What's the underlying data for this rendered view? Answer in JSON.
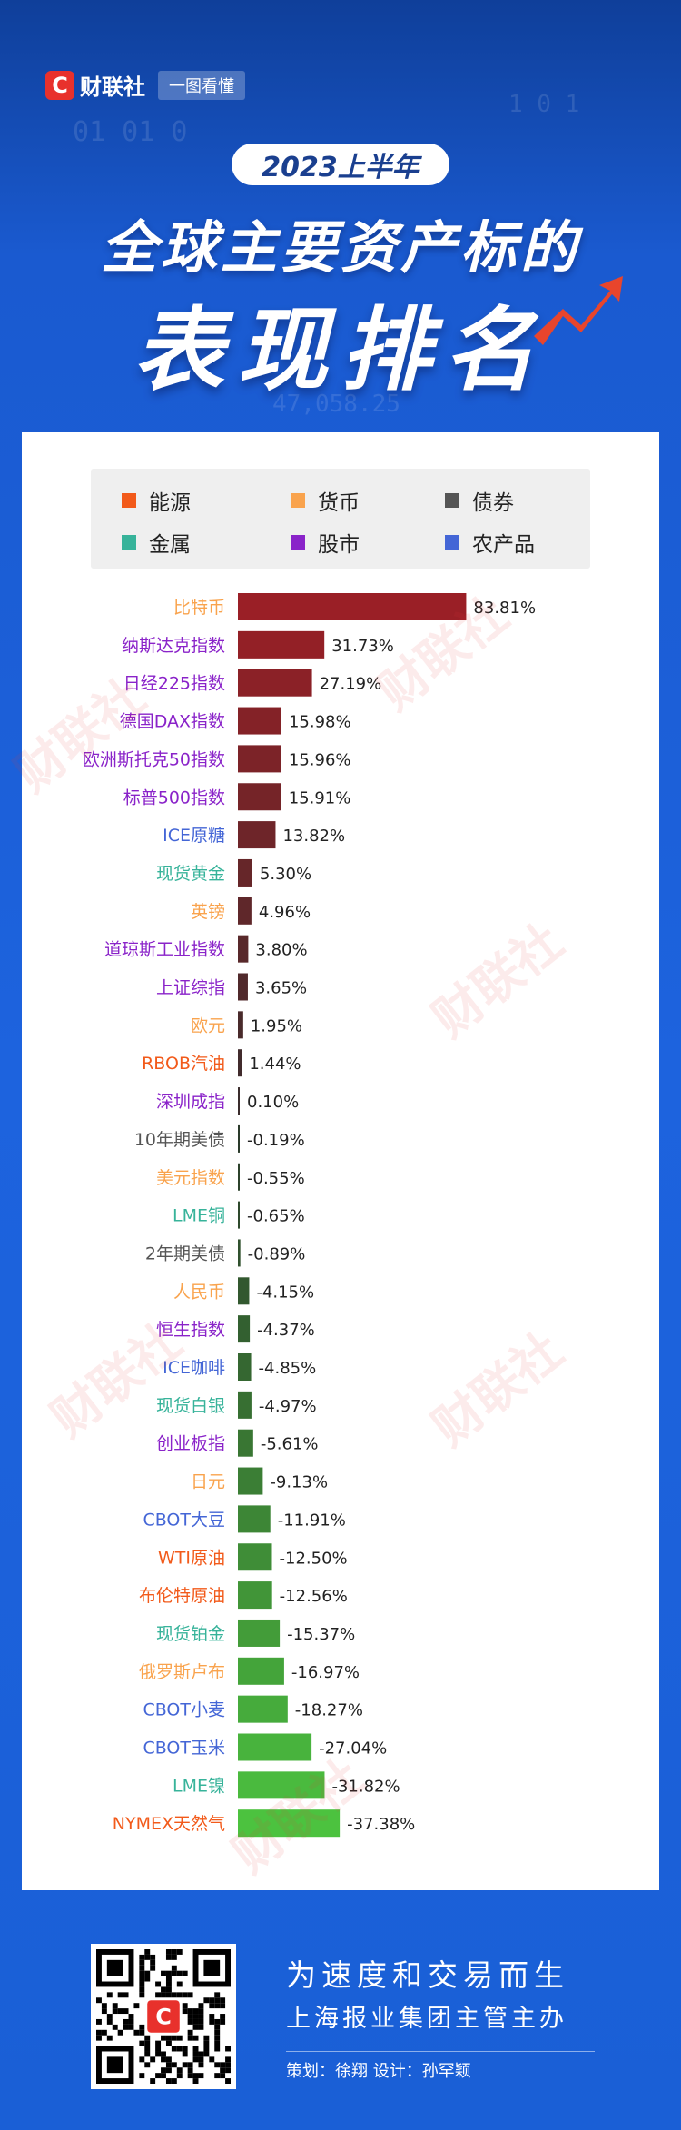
{
  "brand": {
    "logo_letter": "C",
    "name": "财联社",
    "tag": "一图看懂"
  },
  "header": {
    "period": "2023上半年",
    "title_line1": "全球主要资产标的",
    "title_line2": "表现排名"
  },
  "background_digits": [
    "01 01 0",
    "47,058.25",
    "1 0 1"
  ],
  "legend": [
    {
      "label": "能源",
      "color": "#f25a1a"
    },
    {
      "label": "货币",
      "color": "#f9a34d"
    },
    {
      "label": "债券",
      "color": "#555555"
    },
    {
      "label": "金属",
      "color": "#37b39a"
    },
    {
      "label": "股市",
      "color": "#8a23c9"
    },
    {
      "label": "农产品",
      "color": "#4466d6"
    }
  ],
  "watermark_text": "财联社",
  "chart_data": {
    "type": "bar",
    "orientation": "horizontal",
    "value_format": "percent",
    "categories": [
      "比特币",
      "纳斯达克指数",
      "日经225指数",
      "德国DAX指数",
      "欧洲斯托克50指数",
      "标普500指数",
      "ICE原糖",
      "现货黄金",
      "英镑",
      "道琼斯工业指数",
      "上证综指",
      "欧元",
      "RBOB汽油",
      "深圳成指",
      "10年期美债",
      "美元指数",
      "LME铜",
      "2年期美债",
      "人民币",
      "恒生指数",
      "ICE咖啡",
      "现货白银",
      "创业板指",
      "日元",
      "CBOT大豆",
      "WTI原油",
      "布伦特原油",
      "现货铂金",
      "俄罗斯卢布",
      "CBOT小麦",
      "CBOT玉米",
      "LME镍",
      "NYMEX天然气"
    ],
    "category_groups": [
      "货币",
      "股市",
      "股市",
      "股市",
      "股市",
      "股市",
      "农产品",
      "金属",
      "货币",
      "股市",
      "股市",
      "货币",
      "能源",
      "股市",
      "债券",
      "货币",
      "金属",
      "债券",
      "货币",
      "股市",
      "农产品",
      "金属",
      "股市",
      "货币",
      "农产品",
      "能源",
      "能源",
      "金属",
      "货币",
      "农产品",
      "农产品",
      "金属",
      "能源"
    ],
    "values": [
      83.81,
      31.73,
      27.19,
      15.98,
      15.96,
      15.91,
      13.82,
      5.3,
      4.96,
      3.8,
      3.65,
      1.95,
      1.44,
      0.1,
      -0.19,
      -0.55,
      -0.65,
      -0.89,
      -4.15,
      -4.37,
      -4.85,
      -4.97,
      -5.61,
      -9.13,
      -11.91,
      -12.5,
      -12.56,
      -15.37,
      -16.97,
      -18.27,
      -27.04,
      -31.82,
      -37.38
    ],
    "value_labels": [
      "83.81%",
      "31.73%",
      "27.19%",
      "15.98%",
      "15.96%",
      "15.91%",
      "13.82%",
      "5.30%",
      "4.96%",
      "3.80%",
      "3.65%",
      "1.95%",
      "1.44%",
      "0.10%",
      "-0.19%",
      "-0.55%",
      "-0.65%",
      "-0.89%",
      "-4.15%",
      "-4.37%",
      "-4.85%",
      "-4.97%",
      "-5.61%",
      "-9.13%",
      "-11.91%",
      "-12.50%",
      "-12.56%",
      "-15.37%",
      "-16.97%",
      "-18.27%",
      "-27.04%",
      "-31.82%",
      "-37.38%"
    ],
    "positive_color_range": [
      "#9a1f26",
      "#3a2c2c"
    ],
    "negative_color_range": [
      "#2a3a2a",
      "#4cc23f"
    ]
  },
  "footer": {
    "qr_logo_letter": "C",
    "slogan": "为速度和交易而生",
    "org": "上海报业集团主管主办",
    "credit": "策划：徐翔    设计：孙罕颖"
  }
}
